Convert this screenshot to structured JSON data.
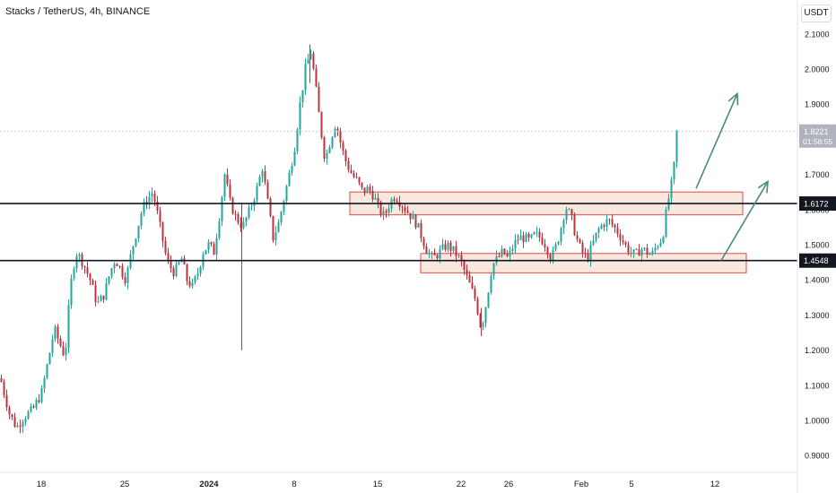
{
  "chart_title": "Stacks / TetherUS, 4h, BINANCE",
  "currency_button": "USDT",
  "colors": {
    "up": "#26a69a",
    "down": "#b8353f",
    "zone_fill": "#f8e4d8",
    "zone_border": "#e04848",
    "arrow": "#4a8a82",
    "level_line": "#131722",
    "current_price_bg": "#aeb3bd"
  },
  "chart_data": {
    "type": "candlestick",
    "x_tick_labels": [
      "18",
      "25",
      "2024",
      "8",
      "15",
      "22",
      "26",
      "Feb",
      "5",
      "12"
    ],
    "y_tick_labels": [
      "0.9000",
      "1.0000",
      "1.1000",
      "1.2000",
      "1.3000",
      "1.4000",
      "1.5000",
      "1.6000",
      "1.7000",
      "1.8000",
      "1.9000",
      "2.0000",
      "2.1000"
    ],
    "ylim": [
      0.85,
      2.15
    ],
    "horizontal_levels": [
      1.6172,
      1.4548
    ],
    "price_labels": [
      {
        "value": 1.6172,
        "text": "1.6172"
      },
      {
        "value": 1.4548,
        "text": "1.4548"
      }
    ],
    "current_price": {
      "value": 1.8221,
      "text": "1.8221",
      "countdown": "01:58:55"
    },
    "zones": [
      {
        "top": 1.65,
        "bottom": 1.585
      },
      {
        "top": 1.475,
        "bottom": 1.42
      }
    ],
    "path": [
      [
        0,
        1.12
      ],
      [
        4,
        1.08
      ],
      [
        10,
        1.02
      ],
      [
        18,
        0.98
      ],
      [
        26,
        1.01
      ],
      [
        36,
        1.03
      ],
      [
        46,
        1.08
      ],
      [
        54,
        1.18
      ],
      [
        60,
        1.26
      ],
      [
        66,
        1.22
      ],
      [
        72,
        1.18
      ],
      [
        78,
        1.38
      ],
      [
        84,
        1.48
      ],
      [
        92,
        1.45
      ],
      [
        100,
        1.4
      ],
      [
        108,
        1.33
      ],
      [
        116,
        1.36
      ],
      [
        122,
        1.42
      ],
      [
        128,
        1.46
      ],
      [
        134,
        1.43
      ],
      [
        140,
        1.4
      ],
      [
        146,
        1.48
      ],
      [
        152,
        1.54
      ],
      [
        158,
        1.6
      ],
      [
        164,
        1.63
      ],
      [
        170,
        1.65
      ],
      [
        178,
        1.55
      ],
      [
        186,
        1.45
      ],
      [
        194,
        1.42
      ],
      [
        202,
        1.46
      ],
      [
        208,
        1.4
      ],
      [
        214,
        1.38
      ],
      [
        220,
        1.42
      ],
      [
        226,
        1.48
      ],
      [
        232,
        1.5
      ],
      [
        238,
        1.48
      ],
      [
        244,
        1.58
      ],
      [
        250,
        1.7
      ],
      [
        256,
        1.62
      ],
      [
        262,
        1.58
      ],
      [
        270,
        1.55
      ],
      [
        278,
        1.6
      ],
      [
        286,
        1.66
      ],
      [
        292,
        1.72
      ],
      [
        298,
        1.62
      ],
      [
        304,
        1.52
      ],
      [
        310,
        1.56
      ],
      [
        316,
        1.63
      ],
      [
        322,
        1.7
      ],
      [
        328,
        1.78
      ],
      [
        334,
        1.9
      ],
      [
        340,
        2.0
      ],
      [
        346,
        2.05
      ],
      [
        350,
        1.98
      ],
      [
        356,
        1.85
      ],
      [
        362,
        1.74
      ],
      [
        368,
        1.8
      ],
      [
        374,
        1.85
      ],
      [
        380,
        1.78
      ],
      [
        386,
        1.73
      ],
      [
        392,
        1.7
      ],
      [
        398,
        1.68
      ],
      [
        404,
        1.65
      ],
      [
        410,
        1.66
      ],
      [
        416,
        1.64
      ],
      [
        422,
        1.6
      ],
      [
        428,
        1.58
      ],
      [
        434,
        1.62
      ],
      [
        440,
        1.64
      ],
      [
        446,
        1.62
      ],
      [
        452,
        1.6
      ],
      [
        458,
        1.58
      ],
      [
        464,
        1.56
      ],
      [
        470,
        1.52
      ],
      [
        476,
        1.48
      ],
      [
        482,
        1.46
      ],
      [
        490,
        1.48
      ],
      [
        498,
        1.5
      ],
      [
        506,
        1.48
      ],
      [
        512,
        1.46
      ],
      [
        518,
        1.42
      ],
      [
        524,
        1.38
      ],
      [
        530,
        1.34
      ],
      [
        536,
        1.26
      ],
      [
        542,
        1.34
      ],
      [
        548,
        1.44
      ],
      [
        554,
        1.46
      ],
      [
        560,
        1.48
      ],
      [
        566,
        1.46
      ],
      [
        572,
        1.5
      ],
      [
        578,
        1.52
      ],
      [
        584,
        1.52
      ],
      [
        590,
        1.51
      ],
      [
        596,
        1.53
      ],
      [
        602,
        1.52
      ],
      [
        608,
        1.5
      ],
      [
        614,
        1.46
      ],
      [
        620,
        1.5
      ],
      [
        626,
        1.56
      ],
      [
        630,
        1.61
      ],
      [
        636,
        1.58
      ],
      [
        642,
        1.52
      ],
      [
        648,
        1.48
      ],
      [
        654,
        1.46
      ],
      [
        660,
        1.5
      ],
      [
        666,
        1.54
      ],
      [
        672,
        1.56
      ],
      [
        678,
        1.57
      ],
      [
        684,
        1.55
      ],
      [
        690,
        1.53
      ],
      [
        696,
        1.5
      ],
      [
        702,
        1.48
      ],
      [
        708,
        1.47
      ],
      [
        714,
        1.49
      ],
      [
        720,
        1.48
      ],
      [
        726,
        1.47
      ],
      [
        732,
        1.5
      ],
      [
        738,
        1.52
      ],
      [
        744,
        1.62
      ],
      [
        748,
        1.67
      ],
      [
        752,
        1.74
      ],
      [
        754,
        1.82
      ]
    ],
    "arrows": [
      {
        "from": [
          776,
          1.66
        ],
        "to": [
          822,
          1.93
        ]
      },
      {
        "from": [
          804,
          1.455
        ],
        "to": [
          856,
          1.68
        ]
      }
    ]
  }
}
